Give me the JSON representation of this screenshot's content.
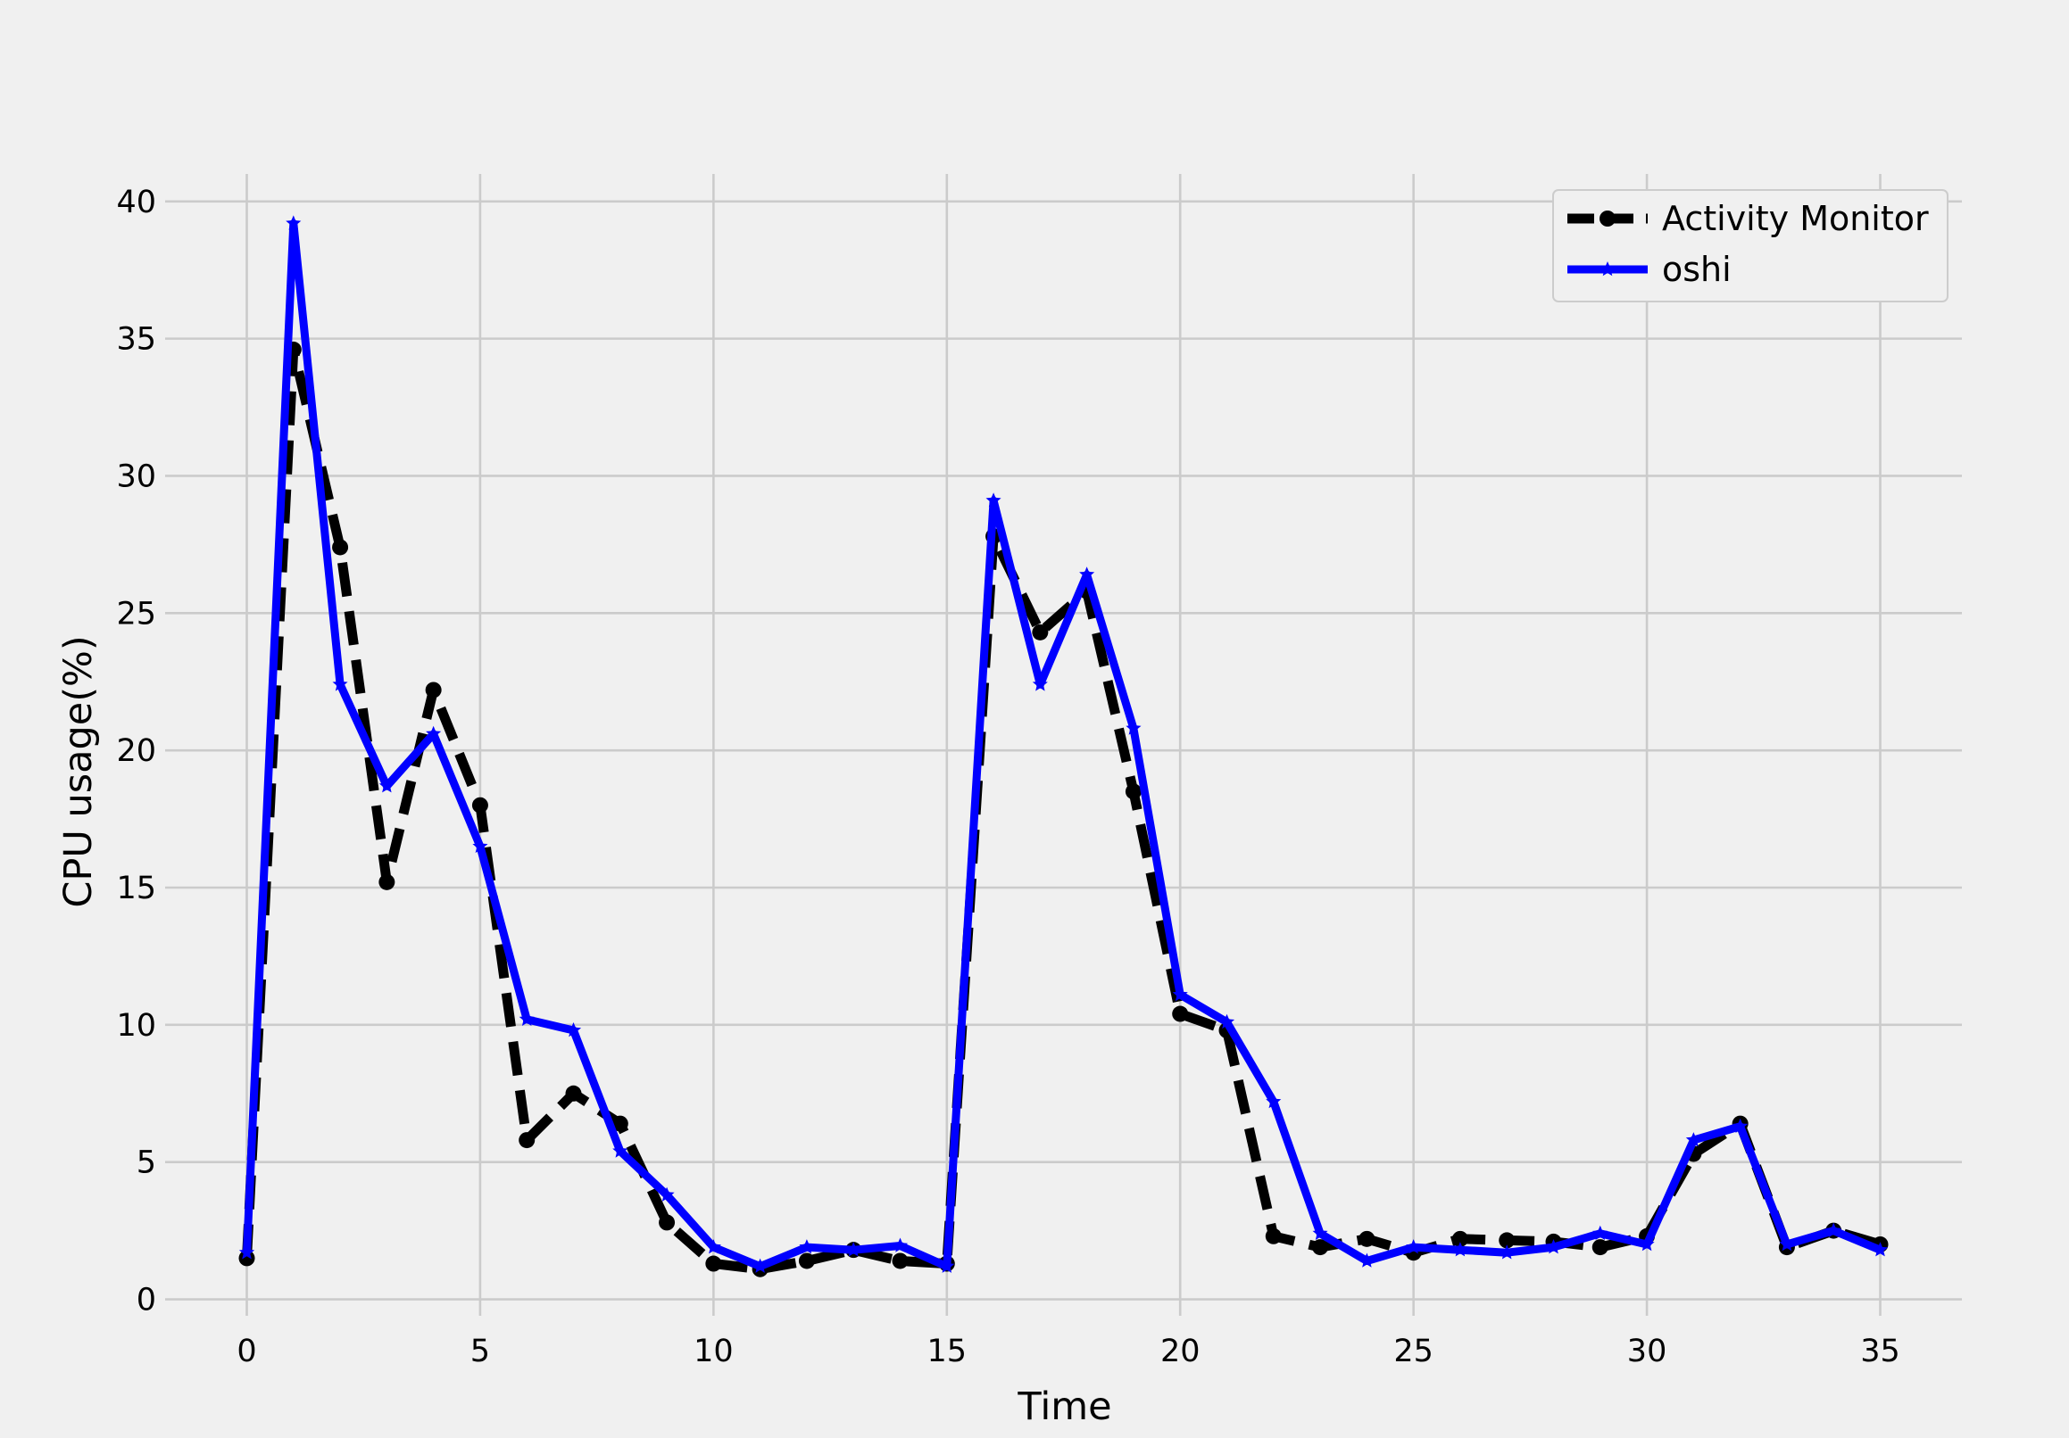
{
  "chart_data": {
    "type": "line",
    "title": "",
    "xlabel": "Time",
    "ylabel": "CPU usage(%)",
    "xlim": [
      -1.75,
      36.75
    ],
    "ylim": [
      -0.6,
      41
    ],
    "xticks": [
      0,
      5,
      10,
      15,
      20,
      25,
      30,
      35
    ],
    "yticks": [
      0,
      5,
      10,
      15,
      20,
      25,
      30,
      35,
      40
    ],
    "grid": true,
    "legend_position": "top-right",
    "x": [
      0,
      1,
      2,
      3,
      4,
      5,
      6,
      7,
      8,
      9,
      10,
      11,
      12,
      13,
      14,
      15,
      16,
      17,
      18,
      19,
      20,
      21,
      22,
      23,
      24,
      25,
      26,
      27,
      28,
      29,
      30,
      31,
      32,
      33,
      34,
      35
    ],
    "series": [
      {
        "name": "Activity Monitor",
        "color": "#000000",
        "line_style": "dashed",
        "marker": "circle",
        "values": [
          1.5,
          34.6,
          27.4,
          15.2,
          22.2,
          18.0,
          5.8,
          7.5,
          6.4,
          2.8,
          1.3,
          1.1,
          1.4,
          1.8,
          1.4,
          1.3,
          27.8,
          24.3,
          25.8,
          18.5,
          10.4,
          9.8,
          2.3,
          1.9,
          2.2,
          1.7,
          2.2,
          2.15,
          2.1,
          1.9,
          2.3,
          5.3,
          6.4,
          1.9,
          2.5,
          2.0
        ]
      },
      {
        "name": "oshi",
        "color": "#0000ff",
        "line_style": "solid",
        "marker": "star",
        "values": [
          1.7,
          39.2,
          22.4,
          18.7,
          20.6,
          16.5,
          10.2,
          9.8,
          5.4,
          3.8,
          1.9,
          1.2,
          1.9,
          1.8,
          1.95,
          1.2,
          29.1,
          22.4,
          26.4,
          20.8,
          11.1,
          10.1,
          7.2,
          2.4,
          1.4,
          1.9,
          1.8,
          1.7,
          1.9,
          2.4,
          2.0,
          5.8,
          6.3,
          2.0,
          2.5,
          1.8
        ]
      }
    ]
  }
}
